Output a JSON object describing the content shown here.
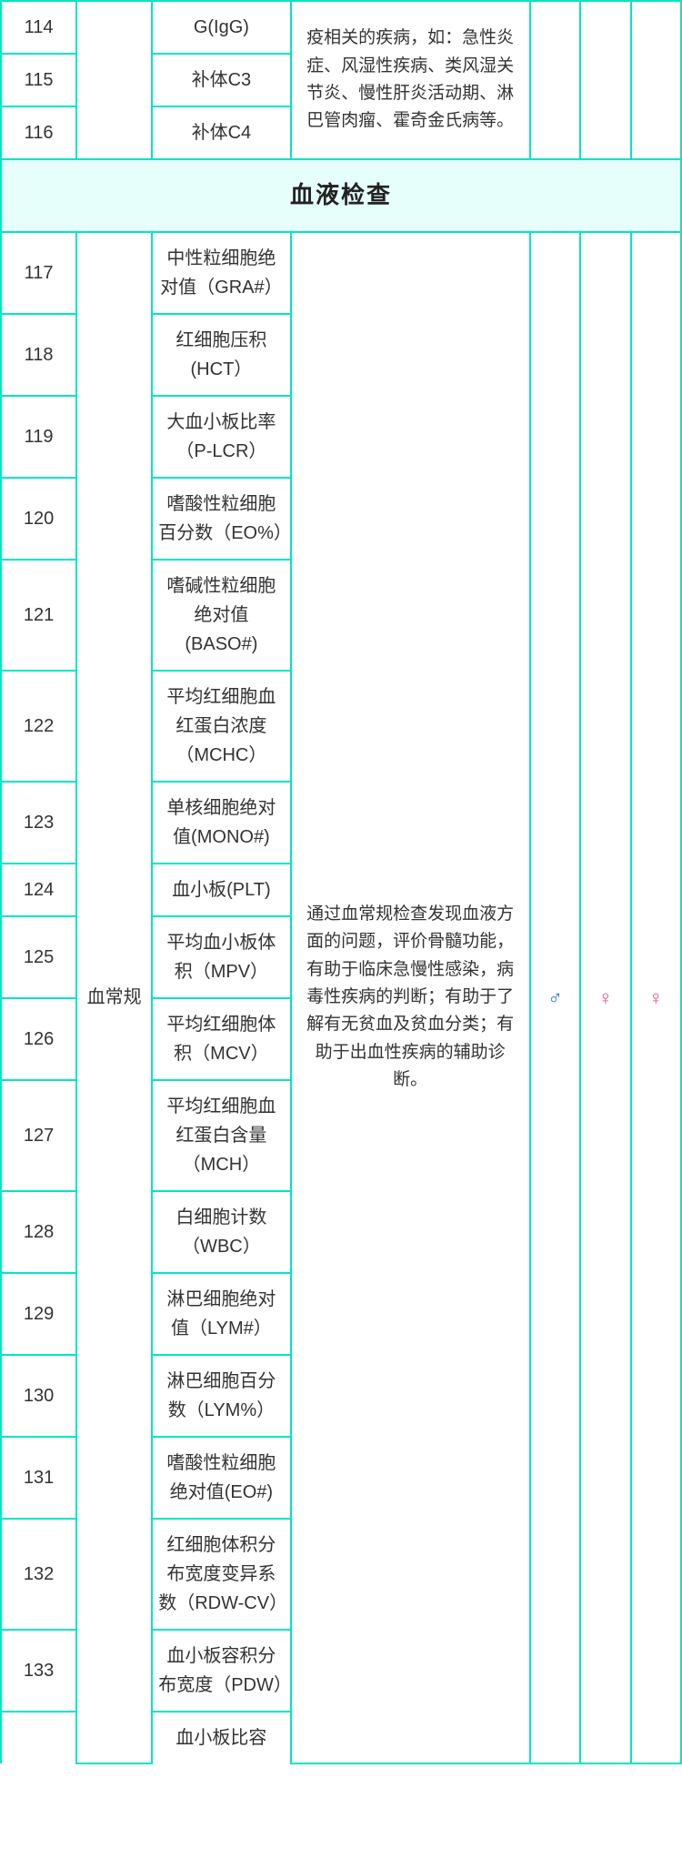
{
  "top": {
    "rows": [
      {
        "seq": "114",
        "name": "G(IgG)"
      },
      {
        "seq": "115",
        "name": "补体C3"
      },
      {
        "seq": "116",
        "name": "补体C4"
      }
    ],
    "desc": "疫相关的疾病，如：急性炎症、风湿性疾病、类风湿关节炎、慢性肝炎活动期、淋巴管肉瘤、霍奇金氏病等。"
  },
  "section_header": "血液检查",
  "blood": {
    "category": "血常规",
    "desc": "通过血常规检查发现血液方面的问题，评价骨髓功能，有助于临床急慢性感染，病毒性疾病的判断；有助于了解有无贫血及贫血分类；有助于出血性疾病的辅助诊断。",
    "symbols": {
      "s1": "♂",
      "s2": "♀",
      "s3": "♀"
    },
    "rows": [
      {
        "seq": "117",
        "name": "中性粒细胞绝对值（GRA#）"
      },
      {
        "seq": "118",
        "name": "红细胞压积(HCT）"
      },
      {
        "seq": "119",
        "name": "大血小板比率（P-LCR）"
      },
      {
        "seq": "120",
        "name": "嗜酸性粒细胞百分数（EO%）"
      },
      {
        "seq": "121",
        "name": "嗜碱性粒细胞绝对值(BASO#)"
      },
      {
        "seq": "122",
        "name": "平均红细胞血红蛋白浓度（MCHC）"
      },
      {
        "seq": "123",
        "name": "单核细胞绝对值(MONO#)"
      },
      {
        "seq": "124",
        "name": "血小板(PLT)"
      },
      {
        "seq": "125",
        "name": "平均血小板体积（MPV）"
      },
      {
        "seq": "126",
        "name": "平均红细胞体积（MCV）"
      },
      {
        "seq": "127",
        "name": "平均红细胞血红蛋白含量（MCH）"
      },
      {
        "seq": "128",
        "name": "白细胞计数（WBC）"
      },
      {
        "seq": "129",
        "name": "淋巴细胞绝对值（LYM#）"
      },
      {
        "seq": "130",
        "name": "淋巴细胞百分数（LYM%）"
      },
      {
        "seq": "131",
        "name": "嗜酸性粒细胞绝对值(EO#)"
      },
      {
        "seq": "132",
        "name": "红细胞体积分布宽度变异系数（RDW-CV）"
      },
      {
        "seq": "133",
        "name": "血小板容积分布宽度（PDW）"
      }
    ],
    "tail_name": "血小板比容"
  }
}
